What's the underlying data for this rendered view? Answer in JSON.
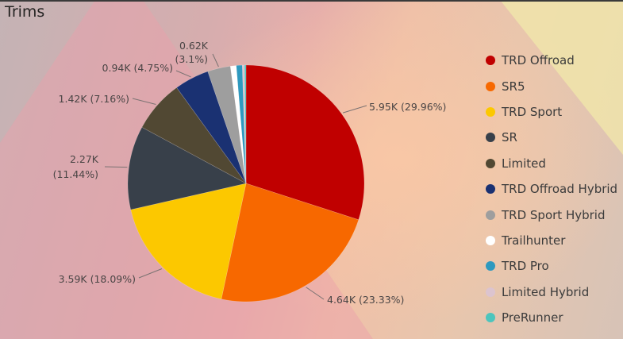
{
  "chart_data": {
    "type": "pie",
    "title": "Trims",
    "legend_position": "right",
    "slices": [
      {
        "label": "TRD Offroad",
        "value": 5.95,
        "value_text": "5.95K",
        "percent_text": "29.96%",
        "color": "#c00000"
      },
      {
        "label": "SR5",
        "value": 4.64,
        "value_text": "4.64K",
        "percent_text": "23.33%",
        "color": "#f76800"
      },
      {
        "label": "TRD Sport",
        "value": 3.59,
        "value_text": "3.59K",
        "percent_text": "18.09%",
        "color": "#fcc800"
      },
      {
        "label": "SR",
        "value": 2.27,
        "value_text": "2.27K",
        "percent_text": "11.44%",
        "color": "#38404a"
      },
      {
        "label": "Limited",
        "value": 1.42,
        "value_text": "1.42K",
        "percent_text": "7.16%",
        "color": "#514833"
      },
      {
        "label": "TRD Offroad Hybrid",
        "value": 0.94,
        "value_text": "0.94K",
        "percent_text": "4.75%",
        "color": "#1a3172"
      },
      {
        "label": "TRD Sport Hybrid",
        "value": 0.62,
        "value_text": "0.62K",
        "percent_text": "3.1%",
        "color": "#9e9e9e"
      },
      {
        "label": "Trailhunter",
        "value": 0.16,
        "value_text": "",
        "percent_text": "",
        "color": "#ffffff"
      },
      {
        "label": "TRD Pro",
        "value": 0.16,
        "value_text": "",
        "percent_text": "",
        "color": "#2e99bf"
      },
      {
        "label": "Limited Hybrid",
        "value": 0.06,
        "value_text": "",
        "percent_text": "",
        "color": "#dcc4cf"
      },
      {
        "label": "PreRunner",
        "value": 0.04,
        "value_text": "",
        "percent_text": "",
        "color": "#4cc5bd"
      }
    ]
  }
}
